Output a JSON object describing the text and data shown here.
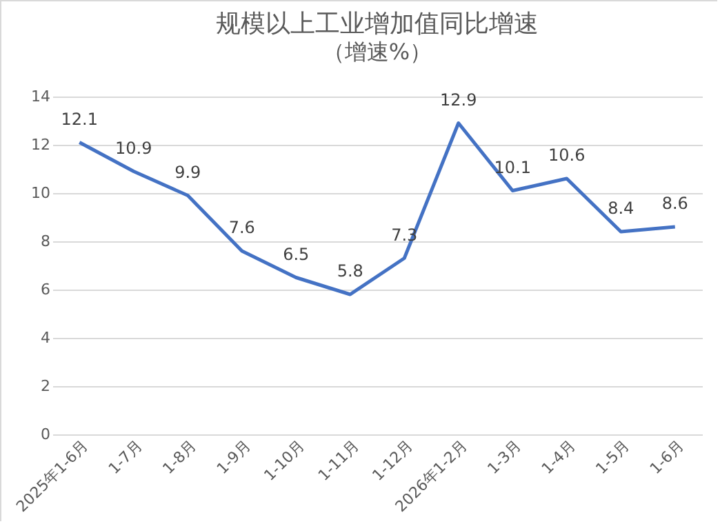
{
  "chart_data": {
    "type": "line",
    "title": "规模以上工业增加值同比增速",
    "subtitle": "（增速%）",
    "categories": [
      "2025年1-6月",
      "1-7月",
      "1-8月",
      "1-9月",
      "1-10月",
      "1-11月",
      "1-12月",
      "2026年1-2月",
      "1-3月",
      "1-4月",
      "1-5月",
      "1-6月"
    ],
    "series": [
      {
        "color": "#4472c4",
        "values": [
          12.1,
          10.9,
          9.9,
          7.6,
          6.5,
          5.8,
          7.3,
          12.9,
          10.1,
          10.6,
          8.4,
          8.6
        ]
      }
    ],
    "ylim": [
      0,
      14
    ],
    "yticks": [
      0,
      2,
      4,
      6,
      8,
      10,
      12,
      14
    ],
    "grid": "y",
    "data_labels": true,
    "legend": false,
    "marker": "none",
    "line_style": "solid"
  }
}
